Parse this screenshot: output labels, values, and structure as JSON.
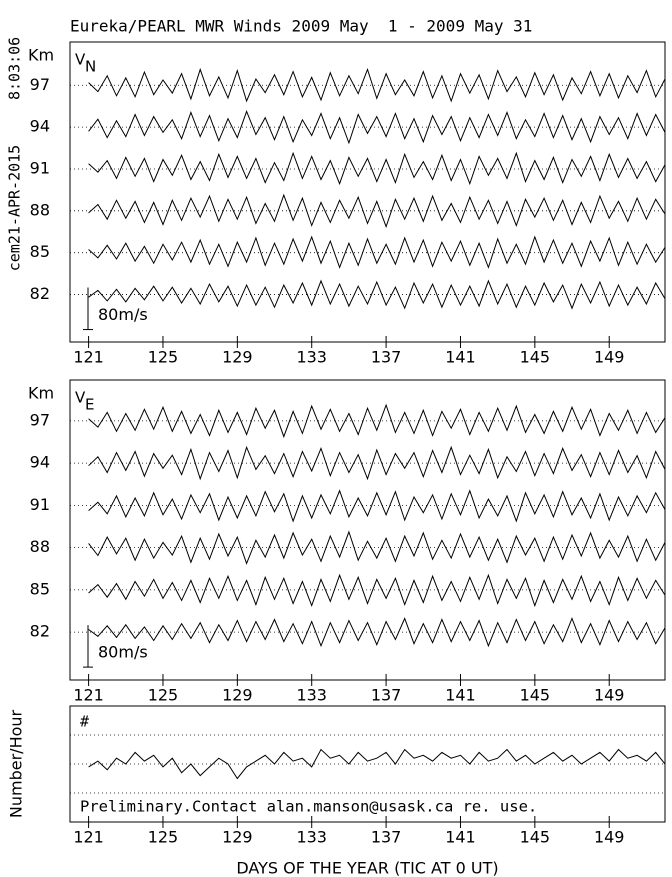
{
  "chart_data": [
    {
      "type": "line",
      "title": "Eureka/PEARL MWR Winds 2009 May  1 - 2009 May 31",
      "timestamp": "8:03:06",
      "run_id": "cem21-APR-2015",
      "ylabel": "Km",
      "panel_label": "V",
      "panel_subscript": "N",
      "scale_bar": {
        "value": 80,
        "label": "80m/s"
      },
      "xlim": [
        120,
        152
      ],
      "xticks": [
        121,
        125,
        129,
        133,
        137,
        141,
        145,
        149
      ],
      "ylim": [
        78.6,
        100.1
      ],
      "yticks": [
        82,
        85,
        88,
        91,
        94,
        97
      ],
      "grid": true,
      "x": [
        121,
        121.5,
        122,
        122.5,
        123,
        123.5,
        124,
        124.5,
        125,
        125.5,
        126,
        126.5,
        127,
        127.5,
        128,
        128.5,
        129,
        129.5,
        130,
        130.5,
        131,
        131.5,
        132,
        132.5,
        133,
        133.5,
        134,
        134.5,
        135,
        135.5,
        136,
        136.5,
        137,
        137.5,
        138,
        138.5,
        139,
        139.5,
        140,
        140.5,
        141,
        141.5,
        142,
        142.5,
        143,
        143.5,
        144,
        144.5,
        145,
        145.5,
        146,
        146.5,
        147,
        147.5,
        148,
        148.5,
        149,
        149.5,
        150,
        150.5,
        151,
        151.5,
        152
      ],
      "series": [
        {
          "level": 97,
          "color": "#000000",
          "values": [
            5,
            -12,
            18,
            -20,
            14,
            -22,
            25,
            -18,
            10,
            -15,
            22,
            -26,
            30,
            -20,
            16,
            -24,
            28,
            -30,
            12,
            -14,
            20,
            -18,
            26,
            -22,
            15,
            -28,
            24,
            -20,
            18,
            -16,
            30,
            -25,
            22,
            -18,
            10,
            -20,
            26,
            -24,
            18,
            -30,
            22,
            -15,
            20,
            -26,
            28,
            -12,
            16,
            -22,
            24,
            -18,
            20,
            -28,
            14,
            -16,
            26,
            -20,
            22,
            -24,
            18,
            -14,
            28,
            -22,
            12
          ]
        },
        {
          "level": 94,
          "color": "#000000",
          "values": [
            -8,
            15,
            -20,
            12,
            -18,
            24,
            -16,
            20,
            -10,
            14,
            -22,
            28,
            -18,
            22,
            -26,
            16,
            -20,
            30,
            -14,
            18,
            -24,
            20,
            -28,
            14,
            -16,
            26,
            -22,
            18,
            -30,
            24,
            -12,
            20,
            -18,
            26,
            -22,
            16,
            -28,
            22,
            -14,
            20,
            -26,
            18,
            -20,
            24,
            -16,
            28,
            -22,
            14,
            -18,
            26,
            -20,
            22,
            -24,
            16,
            -28,
            20,
            -14,
            18,
            -22,
            26,
            -16,
            24,
            -10
          ]
        },
        {
          "level": 91,
          "color": "#000000",
          "values": [
            10,
            -6,
            16,
            -18,
            22,
            -14,
            20,
            -24,
            18,
            -12,
            26,
            -20,
            14,
            -22,
            28,
            -16,
            24,
            -18,
            20,
            -26,
            12,
            -22,
            30,
            -18,
            24,
            -20,
            16,
            -28,
            22,
            -14,
            20,
            -24,
            18,
            -26,
            28,
            -16,
            14,
            -20,
            26,
            -22,
            18,
            -28,
            24,
            -12,
            20,
            -18,
            30,
            -24,
            16,
            -20,
            22,
            -26,
            18,
            -14,
            24,
            -22,
            28,
            -16,
            20,
            -18,
            14,
            -24,
            8
          ]
        },
        {
          "level": 88,
          "color": "#000000",
          "values": [
            -4,
            12,
            -16,
            20,
            -14,
            18,
            -22,
            16,
            -26,
            20,
            -18,
            24,
            -12,
            28,
            -20,
            22,
            -16,
            26,
            -24,
            14,
            -20,
            30,
            -18,
            24,
            -28,
            16,
            -22,
            20,
            -14,
            26,
            -24,
            18,
            -30,
            22,
            -16,
            24,
            -20,
            28,
            -18,
            14,
            -22,
            26,
            -16,
            20,
            -24,
            18,
            -28,
            22,
            -12,
            24,
            -18,
            20,
            -26,
            16,
            -22,
            28,
            -14,
            18,
            -20,
            24,
            -16,
            22,
            -6
          ]
        },
        {
          "level": 85,
          "color": "#000000",
          "values": [
            6,
            -10,
            14,
            -12,
            18,
            -16,
            12,
            -20,
            16,
            -14,
            20,
            -18,
            24,
            -22,
            16,
            -26,
            20,
            -18,
            28,
            -24,
            18,
            -22,
            26,
            -16,
            30,
            -20,
            22,
            -28,
            18,
            -24,
            26,
            -20,
            16,
            -22,
            28,
            -18,
            24,
            -26,
            20,
            -16,
            22,
            -24,
            18,
            -28,
            26,
            -20,
            16,
            -22,
            30,
            -18,
            24,
            -20,
            18,
            -26,
            22,
            -16,
            28,
            -24,
            20,
            -22,
            16,
            -18,
            10
          ]
        },
        {
          "level": 82,
          "color": "#000000",
          "values": [
            -5,
            8,
            -12,
            10,
            -14,
            12,
            -10,
            16,
            -12,
            14,
            -16,
            12,
            -18,
            20,
            -14,
            16,
            -22,
            18,
            -20,
            14,
            -24,
            18,
            -16,
            22,
            -20,
            26,
            -18,
            20,
            -22,
            16,
            -18,
            24,
            -20,
            14,
            -26,
            22,
            -16,
            20,
            -24,
            18,
            -20,
            16,
            -22,
            26,
            -18,
            20,
            -24,
            16,
            -20,
            22,
            -14,
            18,
            -26,
            20,
            -16,
            24,
            -22,
            18,
            -20,
            14,
            -18,
            22,
            -8
          ]
        }
      ]
    },
    {
      "type": "line",
      "ylabel": "Km",
      "panel_label": "V",
      "panel_subscript": "E",
      "scale_bar": {
        "value": 80,
        "label": "80m/s"
      },
      "xlim": [
        120,
        152
      ],
      "xticks": [
        121,
        125,
        129,
        133,
        137,
        141,
        145,
        149
      ],
      "ylim": [
        78.6,
        99.9
      ],
      "yticks": [
        82,
        85,
        88,
        91,
        94,
        97
      ],
      "grid": true,
      "x": [
        121,
        121.5,
        122,
        122.5,
        123,
        123.5,
        124,
        124.5,
        125,
        125.5,
        126,
        126.5,
        127,
        127.5,
        128,
        128.5,
        129,
        129.5,
        130,
        130.5,
        131,
        131.5,
        132,
        132.5,
        133,
        133.5,
        134,
        134.5,
        135,
        135.5,
        136,
        136.5,
        137,
        137.5,
        138,
        138.5,
        139,
        139.5,
        140,
        140.5,
        141,
        141.5,
        142,
        142.5,
        143,
        143.5,
        144,
        144.5,
        145,
        145.5,
        146,
        146.5,
        147,
        147.5,
        148,
        148.5,
        149,
        149.5,
        150,
        150.5,
        151,
        151.5,
        152
      ],
      "series": [
        {
          "level": 97,
          "color": "#000000",
          "values": [
            4,
            -12,
            16,
            -20,
            14,
            -18,
            22,
            -16,
            26,
            -20,
            18,
            -24,
            12,
            -28,
            20,
            -22,
            16,
            -26,
            24,
            -14,
            20,
            -30,
            18,
            -24,
            28,
            -16,
            22,
            -20,
            14,
            -26,
            24,
            -18,
            30,
            -22,
            16,
            -24,
            20,
            -28,
            18,
            -14,
            22,
            -26,
            16,
            -20,
            24,
            -18,
            28,
            -22,
            12,
            -24,
            18,
            -20,
            26,
            -16,
            22,
            -28,
            14,
            -18,
            20,
            -24,
            16,
            -22,
            6
          ]
        },
        {
          "level": 94,
          "color": "#000000",
          "values": [
            -5,
            12,
            -18,
            20,
            -14,
            22,
            -25,
            18,
            -10,
            15,
            -22,
            26,
            -30,
            20,
            -16,
            24,
            -28,
            30,
            -12,
            14,
            -20,
            18,
            -26,
            22,
            -15,
            28,
            -24,
            20,
            -18,
            16,
            -30,
            25,
            -22,
            18,
            -10,
            20,
            -26,
            24,
            -18,
            30,
            -22,
            15,
            -20,
            26,
            -28,
            12,
            -16,
            22,
            -24,
            18,
            -20,
            28,
            -14,
            16,
            -26,
            20,
            -22,
            24,
            -18,
            14,
            -28,
            22,
            -12
          ]
        },
        {
          "level": 91,
          "color": "#000000",
          "values": [
            -10,
            6,
            -16,
            18,
            -22,
            14,
            -20,
            24,
            -18,
            12,
            -26,
            20,
            -14,
            22,
            -28,
            16,
            -24,
            18,
            -20,
            26,
            -12,
            22,
            -30,
            18,
            -24,
            20,
            -16,
            28,
            -22,
            14,
            -20,
            24,
            -18,
            26,
            -28,
            16,
            -14,
            20,
            -26,
            22,
            -18,
            28,
            -24,
            12,
            -20,
            18,
            -30,
            24,
            -16,
            20,
            -22,
            26,
            -18,
            14,
            -24,
            22,
            -28,
            16,
            -20,
            18,
            -14,
            24,
            -8
          ]
        },
        {
          "level": 88,
          "color": "#000000",
          "values": [
            8,
            -15,
            20,
            -12,
            18,
            -24,
            16,
            -20,
            10,
            -14,
            22,
            -28,
            18,
            -22,
            26,
            -16,
            20,
            -30,
            14,
            -18,
            24,
            -20,
            28,
            -14,
            16,
            -26,
            22,
            -18,
            30,
            -24,
            12,
            -20,
            18,
            -26,
            22,
            -16,
            28,
            -22,
            14,
            -20,
            26,
            -18,
            20,
            -24,
            16,
            -28,
            22,
            -14,
            18,
            -26,
            20,
            -22,
            24,
            -16,
            28,
            -20,
            14,
            -18,
            22,
            -26,
            16,
            -24,
            10
          ]
        },
        {
          "level": 85,
          "color": "#000000",
          "values": [
            -6,
            10,
            -14,
            12,
            -18,
            16,
            -12,
            20,
            -16,
            14,
            -20,
            18,
            -24,
            22,
            -16,
            26,
            -20,
            18,
            -28,
            24,
            -18,
            22,
            -26,
            16,
            -30,
            20,
            -22,
            28,
            -18,
            24,
            -26,
            20,
            -16,
            22,
            -28,
            18,
            -24,
            26,
            -20,
            16,
            -22,
            24,
            -18,
            28,
            -26,
            20,
            -16,
            22,
            -30,
            18,
            -24,
            20,
            -18,
            26,
            -22,
            16,
            -28,
            24,
            -20,
            22,
            -16,
            18,
            -10
          ]
        },
        {
          "level": 82,
          "color": "#000000",
          "values": [
            5,
            -8,
            12,
            -10,
            14,
            -12,
            10,
            -16,
            12,
            -14,
            16,
            -12,
            18,
            -20,
            14,
            -16,
            22,
            -18,
            20,
            -14,
            24,
            -18,
            16,
            -22,
            20,
            -26,
            18,
            -20,
            22,
            -16,
            18,
            -24,
            20,
            -14,
            26,
            -22,
            16,
            -20,
            24,
            -18,
            20,
            -16,
            22,
            -26,
            18,
            -20,
            24,
            -16,
            20,
            -22,
            14,
            -18,
            26,
            -20,
            16,
            -24,
            22,
            -18,
            20,
            -14,
            18,
            -22,
            8
          ]
        }
      ]
    },
    {
      "type": "line",
      "ylabel": "Number/Hour",
      "xlabel": "DAYS OF THE YEAR (TIC AT 0 UT)",
      "annotation": "#",
      "note": "Preliminary.Contact alan.manson@usask.ca re. use.",
      "xlim": [
        120,
        152
      ],
      "xticks": [
        121,
        125,
        129,
        133,
        137,
        141,
        145,
        149
      ],
      "ylim": [
        0,
        4
      ],
      "gridlines": [
        1,
        2,
        3
      ],
      "x": [
        121,
        121.5,
        122,
        122.5,
        123,
        123.5,
        124,
        124.5,
        125,
        125.5,
        126,
        126.5,
        127,
        127.5,
        128,
        128.5,
        129,
        129.5,
        130,
        130.5,
        131,
        131.5,
        132,
        132.5,
        133,
        133.5,
        134,
        134.5,
        135,
        135.5,
        136,
        136.5,
        137,
        137.5,
        138,
        138.5,
        139,
        139.5,
        140,
        140.5,
        141,
        141.5,
        142,
        142.5,
        143,
        143.5,
        144,
        144.5,
        145,
        145.5,
        146,
        146.5,
        147,
        147.5,
        148,
        148.5,
        149,
        149.5,
        150,
        150.5,
        151,
        151.5,
        152
      ],
      "color": "#000000",
      "values": [
        1.9,
        2.1,
        1.8,
        2.2,
        2.0,
        2.4,
        2.1,
        2.3,
        1.9,
        2.2,
        1.7,
        2.0,
        1.6,
        1.9,
        2.2,
        2.0,
        1.5,
        1.9,
        2.1,
        2.3,
        2.0,
        2.4,
        2.1,
        2.2,
        1.9,
        2.5,
        2.2,
        2.3,
        2.0,
        2.4,
        2.1,
        2.2,
        2.4,
        2.0,
        2.5,
        2.2,
        2.3,
        2.1,
        2.4,
        2.2,
        2.3,
        2.0,
        2.4,
        2.1,
        2.2,
        2.5,
        2.1,
        2.3,
        2.0,
        2.2,
        2.4,
        2.1,
        2.3,
        2.0,
        2.2,
        2.4,
        2.1,
        2.5,
        2.2,
        2.3,
        2.1,
        2.4,
        2.0
      ]
    }
  ]
}
